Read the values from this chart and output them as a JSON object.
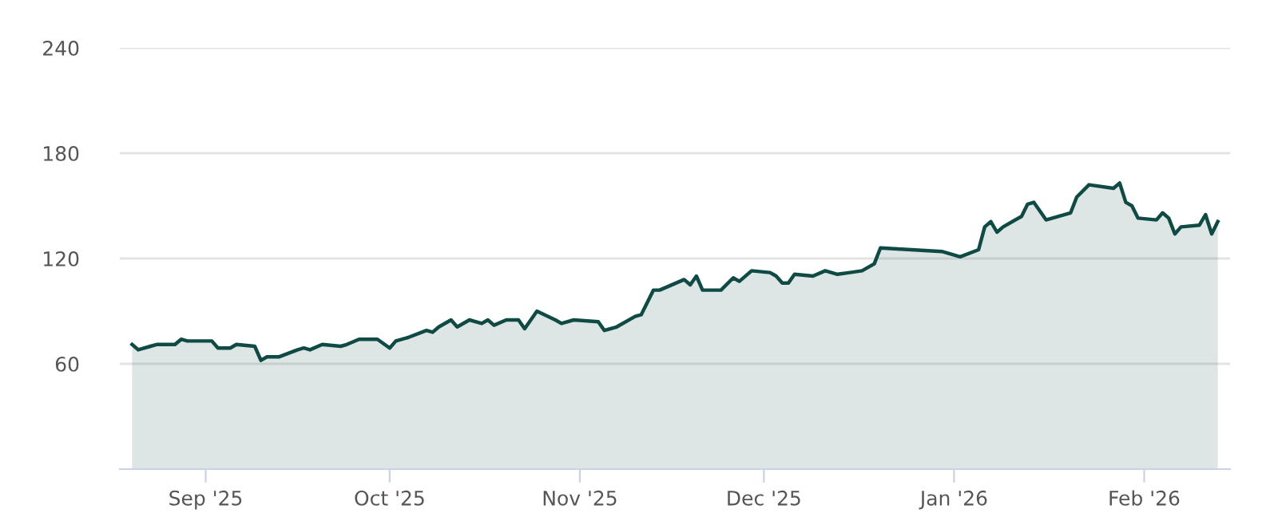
{
  "chart_data": {
    "type": "area",
    "x": [
      "2025-08-20",
      "2025-08-21",
      "2025-08-23",
      "2025-08-24",
      "2025-08-27",
      "2025-08-28",
      "2025-08-29",
      "2025-09-02",
      "2025-09-03",
      "2025-09-05",
      "2025-09-06",
      "2025-09-09",
      "2025-09-10",
      "2025-09-11",
      "2025-09-13",
      "2025-09-16",
      "2025-09-17",
      "2025-09-18",
      "2025-09-20",
      "2025-09-23",
      "2025-09-24",
      "2025-09-26",
      "2025-09-29",
      "2025-10-01",
      "2025-10-02",
      "2025-10-04",
      "2025-10-07",
      "2025-10-08",
      "2025-10-09",
      "2025-10-11",
      "2025-10-12",
      "2025-10-14",
      "2025-10-16",
      "2025-10-17",
      "2025-10-18",
      "2025-10-20",
      "2025-10-22",
      "2025-10-23",
      "2025-10-25",
      "2025-10-28",
      "2025-10-29",
      "2025-10-31",
      "2025-11-04",
      "2025-11-05",
      "2025-11-07",
      "2025-11-10",
      "2025-11-11",
      "2025-11-13",
      "2025-11-14",
      "2025-11-18",
      "2025-11-19",
      "2025-11-20",
      "2025-11-21",
      "2025-11-24",
      "2025-11-26",
      "2025-11-27",
      "2025-11-29",
      "2025-12-02",
      "2025-12-03",
      "2025-12-04",
      "2025-12-05",
      "2025-12-06",
      "2025-12-09",
      "2025-12-11",
      "2025-12-13",
      "2025-12-15",
      "2025-12-17",
      "2025-12-19",
      "2025-12-20",
      "2025-12-30",
      "2026-01-02",
      "2026-01-05",
      "2026-01-06",
      "2026-01-07",
      "2026-01-08",
      "2026-01-09",
      "2026-01-12",
      "2026-01-13",
      "2026-01-14",
      "2026-01-16",
      "2026-01-20",
      "2026-01-21",
      "2026-01-23",
      "2026-01-27",
      "2026-01-28",
      "2026-01-29",
      "2026-01-30",
      "2026-01-31",
      "2026-02-03",
      "2026-02-04",
      "2026-02-05",
      "2026-02-06",
      "2026-02-07",
      "2026-02-10",
      "2026-02-11",
      "2026-02-12",
      "2026-02-13"
    ],
    "series": [
      {
        "color": "#0f4a44",
        "values": [
          71,
          68,
          70,
          71,
          71,
          74,
          73,
          73,
          69,
          69,
          71,
          70,
          62,
          64,
          64,
          68,
          69,
          68,
          71,
          70,
          71,
          74,
          74,
          69,
          73,
          75,
          79,
          78,
          81,
          85,
          81,
          85,
          83,
          85,
          82,
          85,
          85,
          80,
          90,
          85,
          83,
          85,
          84,
          79,
          81,
          87,
          88,
          102,
          102,
          108,
          105,
          110,
          102,
          102,
          109,
          107,
          113,
          112,
          110,
          106,
          106,
          111,
          110,
          113,
          111,
          112,
          113,
          117,
          126,
          124,
          121,
          125,
          138,
          141,
          135,
          138,
          144,
          151,
          152,
          142,
          146,
          155,
          162,
          160,
          163,
          152,
          150,
          143,
          142,
          146,
          143,
          134,
          138,
          139,
          145,
          134,
          141
        ]
      }
    ],
    "xlim": [
      "2025-08-18",
      "2026-02-15"
    ],
    "xticks": [
      {
        "value": "2025-09-01",
        "label": "Sep '25"
      },
      {
        "value": "2025-10-01",
        "label": "Oct '25"
      },
      {
        "value": "2025-11-01",
        "label": "Nov '25"
      },
      {
        "value": "2025-12-01",
        "label": "Dec '25"
      },
      {
        "value": "2026-01-01",
        "label": "Jan '26"
      },
      {
        "value": "2026-02-01",
        "label": "Feb '26"
      }
    ],
    "ylim": [
      0,
      240
    ],
    "yticks": [
      60,
      120,
      180,
      240
    ],
    "grid": "y"
  }
}
